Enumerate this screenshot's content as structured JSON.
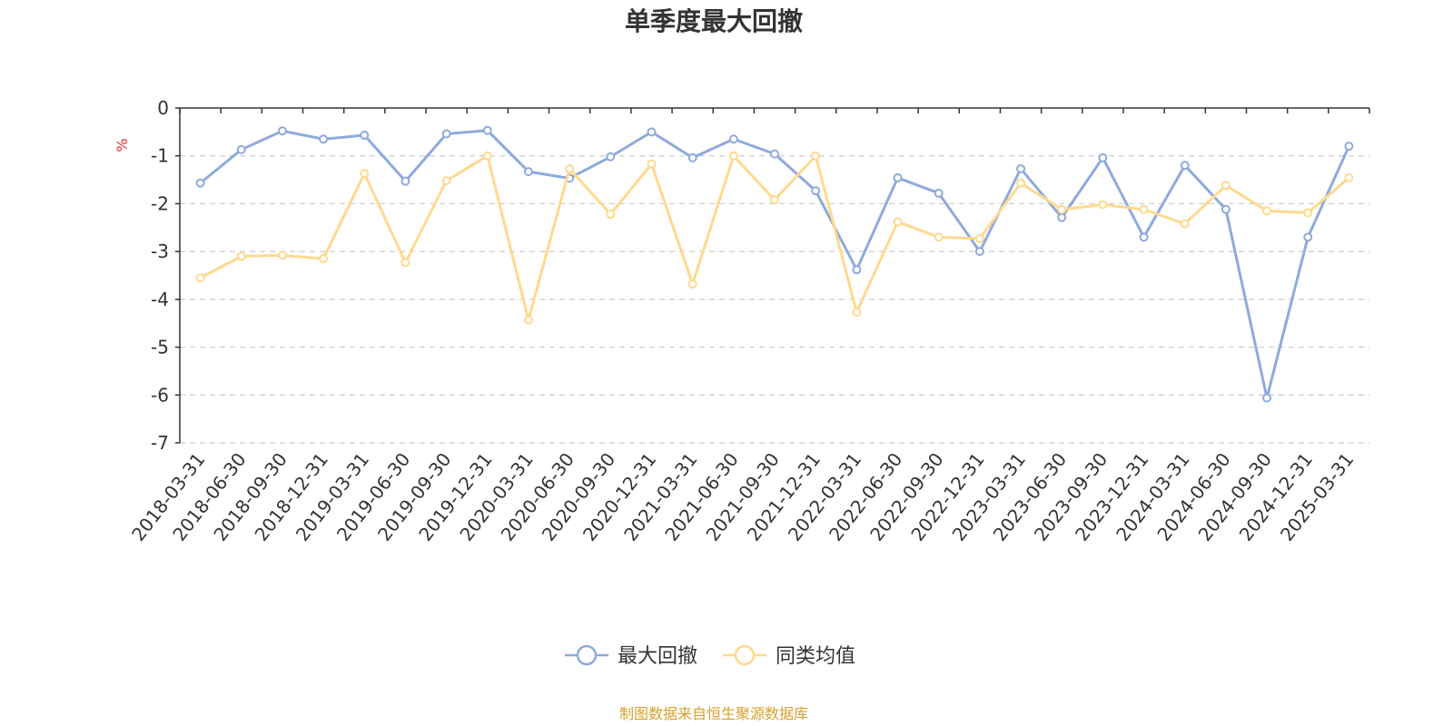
{
  "chart_data": {
    "type": "line",
    "title": "单季度最大回撤",
    "ylabel": "%",
    "xlabel": "",
    "ylim": [
      -7,
      0
    ],
    "yticks": [
      0,
      -1,
      -2,
      -3,
      -4,
      -5,
      -6,
      -7
    ],
    "grid": true,
    "legend_position": "bottom-center",
    "categories": [
      "2018-03-31",
      "2018-06-30",
      "2018-09-30",
      "2018-12-31",
      "2019-03-31",
      "2019-06-30",
      "2019-09-30",
      "2019-12-31",
      "2020-03-31",
      "2020-06-30",
      "2020-09-30",
      "2020-12-31",
      "2021-03-31",
      "2021-06-30",
      "2021-09-30",
      "2021-12-31",
      "2022-03-31",
      "2022-06-30",
      "2022-09-30",
      "2022-12-31",
      "2023-03-31",
      "2023-06-30",
      "2023-09-30",
      "2023-12-31",
      "2024-03-31",
      "2024-06-30",
      "2024-09-30",
      "2024-12-31",
      "2025-03-31"
    ],
    "series": [
      {
        "name": "最大回撤",
        "color": "#8faadc",
        "values": [
          -1.57,
          -0.87,
          -0.48,
          -0.65,
          -0.57,
          -1.53,
          -0.54,
          -0.47,
          -1.33,
          -1.47,
          -1.02,
          -0.5,
          -1.04,
          -0.65,
          -0.96,
          -1.73,
          -3.38,
          -1.46,
          -1.78,
          -3.0,
          -1.27,
          -2.29,
          -1.04,
          -2.7,
          -1.2,
          -2.12,
          -6.06,
          -2.7,
          -0.8
        ]
      },
      {
        "name": "同类均值",
        "color": "#ffd98e",
        "values": [
          -3.55,
          -3.1,
          -3.08,
          -3.15,
          -1.37,
          -3.23,
          -1.52,
          -1.0,
          -4.43,
          -1.27,
          -2.22,
          -1.17,
          -3.68,
          -1.0,
          -1.92,
          -1.0,
          -4.27,
          -2.38,
          -2.7,
          -2.73,
          -1.57,
          -2.12,
          -2.02,
          -2.12,
          -2.42,
          -1.62,
          -2.15,
          -2.19,
          -1.46
        ]
      }
    ]
  },
  "source_note": "制图数据来自恒生聚源数据库",
  "colors": {
    "axis": "#333333",
    "grid": "#cccccc",
    "unit": "#e0302d",
    "source": "#d7a02e"
  }
}
